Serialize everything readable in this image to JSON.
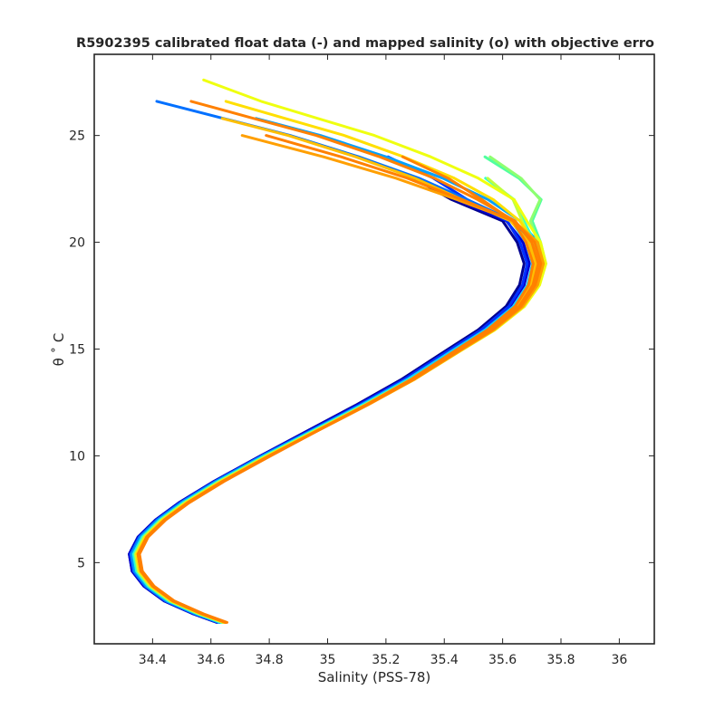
{
  "chart_data": {
    "type": "line",
    "title": "R5902395 calibrated float data (-) and mapped salinity (o) with objective erro",
    "xlabel": "Salinity (PSS-78)",
    "ylabel": "θ ˚ C",
    "xlim": [
      34.2,
      36.12
    ],
    "ylim": [
      1.2,
      28.8
    ],
    "xticks": [
      34.4,
      34.6,
      34.8,
      35,
      35.2,
      35.4,
      35.6,
      35.8,
      36
    ],
    "xtick_labels": [
      "34.4",
      "34.6",
      "34.8",
      "35",
      "35.2",
      "35.4",
      "35.6",
      "35.8",
      "36"
    ],
    "yticks": [
      5,
      10,
      15,
      20,
      25
    ],
    "ytick_labels": [
      "5",
      "10",
      "15",
      "20",
      "25"
    ],
    "grid": false,
    "colormap": "jet",
    "series_note": "profiles colored by cycle number (early = blue, late = orange)",
    "base_profile": {
      "salinity": [
        34.63,
        34.55,
        34.45,
        34.38,
        34.34,
        34.33,
        34.36,
        34.42,
        34.5,
        34.62,
        34.78,
        34.95,
        35.12,
        35.28,
        35.42,
        35.55,
        35.65,
        35.7,
        35.72,
        35.7,
        35.65,
        35.55,
        35.42,
        35.25,
        35.05,
        34.85,
        34.65,
        34.45
      ],
      "theta": [
        2.2,
        2.6,
        3.2,
        3.9,
        4.6,
        5.4,
        6.2,
        7.0,
        7.8,
        8.8,
        10.0,
        11.2,
        12.4,
        13.6,
        14.8,
        15.9,
        17.0,
        18.0,
        19.0,
        20.0,
        21.0,
        22.0,
        23.0,
        24.0,
        25.0,
        25.8,
        26.6,
        27.6
      ]
    },
    "profiles": [
      {
        "color": "#00008f",
        "ds_deep": -0.01,
        "ds_mid": -0.05,
        "ds_top": -0.05,
        "top": 23.0
      },
      {
        "color": "#0000cf",
        "ds_deep": -0.01,
        "ds_mid": -0.03,
        "ds_top": -0.08,
        "top": 22.0
      },
      {
        "color": "#0030ff",
        "ds_deep": 0.0,
        "ds_mid": -0.04,
        "ds_top": 0.0,
        "top": 24.5
      },
      {
        "color": "#0070ff",
        "ds_deep": -0.005,
        "ds_mid": 0.0,
        "ds_top": -0.1,
        "top": 26.6
      },
      {
        "color": "#00a0ff",
        "ds_deep": 0.0,
        "ds_mid": 0.02,
        "ds_top": -0.05,
        "top": 25.8
      },
      {
        "color": "#10d0ff",
        "ds_deep": 0.005,
        "ds_mid": -0.02,
        "ds_top": -0.02,
        "top": 21.5
      },
      {
        "color": "#30ffcf",
        "ds_deep": 0.005,
        "ds_mid": 0.01,
        "ds_top": 0.1,
        "top": 23.5
      },
      {
        "color": "#50ff9f",
        "ds_deep": 0.01,
        "ds_mid": 0.03,
        "ds_top": 0.18,
        "top": 24.7
      },
      {
        "color": "#8fff70",
        "ds_deep": 0.01,
        "ds_mid": 0.02,
        "ds_top": 0.2,
        "top": 24.2
      },
      {
        "color": "#bfff40",
        "ds_deep": 0.012,
        "ds_mid": 0.0,
        "ds_top": 0.12,
        "top": 23.0
      },
      {
        "color": "#efff10",
        "ds_deep": 0.015,
        "ds_mid": 0.03,
        "ds_top": 0.05,
        "top": 28.0
      },
      {
        "color": "#ffdf00",
        "ds_deep": 0.015,
        "ds_mid": 0.01,
        "ds_top": 0.0,
        "top": 27.0
      },
      {
        "color": "#ffbf00",
        "ds_deep": 0.02,
        "ds_mid": -0.01,
        "ds_top": -0.1,
        "top": 26.2
      },
      {
        "color": "#ff9f00",
        "ds_deep": 0.02,
        "ds_mid": 0.02,
        "ds_top": -0.2,
        "top": 25.5
      },
      {
        "color": "#ff8000",
        "ds_deep": 0.02,
        "ds_mid": 0.0,
        "ds_top": -0.05,
        "top": 26.8
      },
      {
        "color": "#ff8000",
        "ds_deep": 0.025,
        "ds_mid": -0.02,
        "ds_top": 0.02,
        "top": 24.0
      },
      {
        "color": "#ff8000",
        "ds_deep": 0.02,
        "ds_mid": 0.01,
        "ds_top": -0.15,
        "top": 25.2
      }
    ]
  }
}
